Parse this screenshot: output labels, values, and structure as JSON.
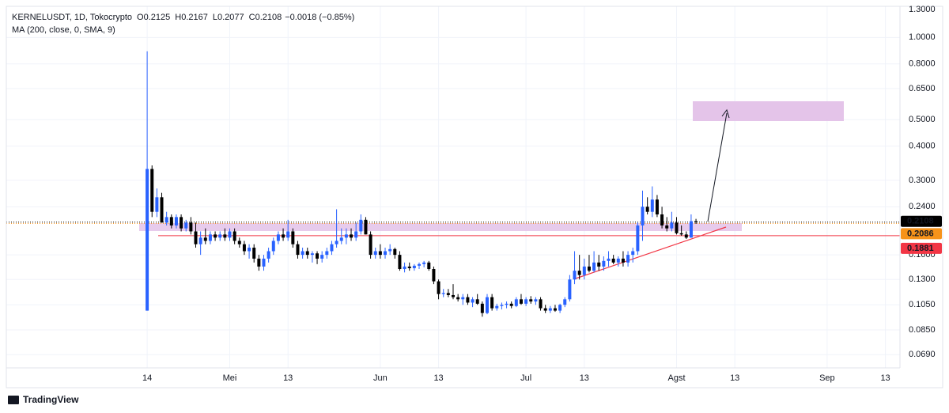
{
  "chart_data": {
    "type": "candlestick",
    "header": {
      "symbol": "KERNELUSDT, 1D, Tokocrypto",
      "ohlc": [
        {
          "label": "O",
          "value": 0.2125
        },
        {
          "label": "H",
          "value": 0.2167
        },
        {
          "label": "L",
          "value": 0.2077
        },
        {
          "label": "C",
          "value": 0.2108
        }
      ],
      "change": "−0.0018 (−0.85%)",
      "indicator": "MA (200, close, 0, SMA, 9)"
    },
    "brand": "TradingView",
    "up_color": "#2962ff",
    "down_color": "#000000",
    "log_scale": true,
    "grid": true,
    "categories": [
      null,
      null,
      null,
      null,
      null,
      null,
      null,
      null,
      null,
      null,
      null,
      null,
      null,
      null,
      null,
      null,
      null,
      null,
      null,
      null,
      null,
      null,
      null,
      null,
      null,
      null,
      null,
      null,
      null,
      null,
      null,
      null,
      null,
      null,
      null,
      null,
      null,
      null,
      null,
      null,
      null,
      null,
      null,
      null,
      null,
      null,
      null,
      null,
      null,
      null,
      null,
      null,
      null,
      null,
      null,
      null,
      null,
      null,
      null,
      null,
      null,
      null,
      null,
      null,
      null,
      null,
      null,
      null,
      null,
      null,
      null,
      null,
      null,
      null,
      null,
      null,
      null,
      null,
      null,
      null,
      null,
      null,
      null,
      null,
      null,
      null,
      null,
      null,
      null,
      null,
      null,
      null,
      null,
      null,
      null,
      null,
      null,
      null,
      null,
      null,
      null,
      null,
      null,
      null,
      null,
      null,
      null,
      null,
      null,
      null,
      null,
      null,
      null,
      null
    ],
    "open": [
      0.1,
      0.33,
      0.23,
      0.26,
      0.21,
      0.22,
      0.205,
      0.22,
      0.2,
      0.21,
      0.195,
      0.175,
      0.185,
      0.18,
      0.19,
      0.185,
      0.19,
      0.185,
      0.195,
      0.18,
      0.175,
      0.165,
      0.17,
      0.155,
      0.145,
      0.155,
      0.165,
      0.18,
      0.19,
      0.185,
      0.195,
      0.175,
      0.16,
      0.165,
      0.16,
      0.162,
      0.155,
      0.16,
      0.165,
      0.175,
      0.18,
      0.185,
      0.19,
      0.185,
      0.195,
      0.215,
      0.19,
      0.16,
      0.165,
      0.16,
      0.165,
      0.168,
      0.16,
      0.142,
      0.145,
      0.143,
      0.146,
      0.148,
      0.15,
      0.142,
      0.128,
      0.115,
      0.116,
      0.114,
      0.112,
      0.11,
      0.112,
      0.107,
      0.11,
      0.106,
      0.098,
      0.112,
      0.102,
      0.104,
      0.105,
      0.106,
      0.104,
      0.11,
      0.106,
      0.11,
      0.108,
      0.11,
      0.102,
      0.1,
      0.102,
      0.1,
      0.105,
      0.11,
      0.13,
      0.14,
      0.135,
      0.145,
      0.14,
      0.15,
      0.145,
      0.152,
      0.155,
      0.15,
      0.155,
      0.15,
      0.16,
      0.165,
      0.205,
      0.24,
      0.23,
      0.255,
      0.225,
      0.205,
      0.2,
      0.21,
      0.192,
      0.19,
      0.185,
      0.2125
    ],
    "high": [
      0.89,
      0.34,
      0.28,
      0.27,
      0.23,
      0.225,
      0.225,
      0.225,
      0.215,
      0.22,
      0.21,
      0.195,
      0.2,
      0.195,
      0.195,
      0.195,
      0.2,
      0.2,
      0.2,
      0.185,
      0.18,
      0.175,
      0.175,
      0.16,
      0.16,
      0.17,
      0.185,
      0.195,
      0.2,
      0.215,
      0.2,
      0.18,
      0.17,
      0.17,
      0.165,
      0.165,
      0.165,
      0.17,
      0.18,
      0.235,
      0.2,
      0.2,
      0.2,
      0.21,
      0.225,
      0.22,
      0.195,
      0.17,
      0.175,
      0.17,
      0.175,
      0.17,
      0.165,
      0.15,
      0.15,
      0.148,
      0.15,
      0.152,
      0.152,
      0.145,
      0.13,
      0.12,
      0.12,
      0.125,
      0.115,
      0.115,
      0.115,
      0.112,
      0.115,
      0.108,
      0.115,
      0.115,
      0.106,
      0.107,
      0.108,
      0.108,
      0.112,
      0.115,
      0.112,
      0.113,
      0.112,
      0.112,
      0.105,
      0.104,
      0.105,
      0.106,
      0.112,
      0.135,
      0.165,
      0.16,
      0.155,
      0.16,
      0.165,
      0.16,
      0.158,
      0.165,
      0.16,
      0.158,
      0.165,
      0.165,
      0.17,
      0.21,
      0.275,
      0.26,
      0.285,
      0.265,
      0.24,
      0.22,
      0.23,
      0.22,
      0.205,
      0.195,
      0.225,
      0.2167
    ],
    "low": [
      0.1,
      0.22,
      0.22,
      0.21,
      0.205,
      0.2,
      0.2,
      0.195,
      0.195,
      0.19,
      0.17,
      0.16,
      0.175,
      0.175,
      0.18,
      0.18,
      0.18,
      0.18,
      0.175,
      0.17,
      0.16,
      0.155,
      0.15,
      0.14,
      0.14,
      0.15,
      0.16,
      0.175,
      0.18,
      0.18,
      0.17,
      0.155,
      0.155,
      0.155,
      0.15,
      0.148,
      0.15,
      0.155,
      0.16,
      0.17,
      0.175,
      0.175,
      0.18,
      0.18,
      0.19,
      0.19,
      0.155,
      0.155,
      0.155,
      0.155,
      0.16,
      0.155,
      0.14,
      0.138,
      0.14,
      0.14,
      0.142,
      0.144,
      0.14,
      0.125,
      0.11,
      0.112,
      0.112,
      0.11,
      0.108,
      0.105,
      0.105,
      0.103,
      0.105,
      0.095,
      0.097,
      0.1,
      0.1,
      0.101,
      0.102,
      0.102,
      0.103,
      0.105,
      0.104,
      0.106,
      0.105,
      0.1,
      0.098,
      0.098,
      0.099,
      0.098,
      0.103,
      0.108,
      0.125,
      0.13,
      0.13,
      0.138,
      0.138,
      0.14,
      0.14,
      0.145,
      0.148,
      0.145,
      0.145,
      0.145,
      0.15,
      0.16,
      0.18,
      0.225,
      0.22,
      0.22,
      0.2,
      0.195,
      0.195,
      0.19,
      0.188,
      0.183,
      0.185,
      0.2077
    ],
    "close": [
      0.33,
      0.23,
      0.26,
      0.21,
      0.22,
      0.205,
      0.22,
      0.2,
      0.21,
      0.195,
      0.175,
      0.185,
      0.18,
      0.19,
      0.185,
      0.19,
      0.185,
      0.195,
      0.18,
      0.175,
      0.165,
      0.17,
      0.155,
      0.145,
      0.155,
      0.165,
      0.18,
      0.19,
      0.185,
      0.195,
      0.175,
      0.16,
      0.165,
      0.16,
      0.162,
      0.155,
      0.16,
      0.165,
      0.175,
      0.18,
      0.185,
      0.19,
      0.185,
      0.195,
      0.215,
      0.19,
      0.16,
      0.165,
      0.16,
      0.165,
      0.168,
      0.16,
      0.142,
      0.145,
      0.143,
      0.146,
      0.148,
      0.15,
      0.142,
      0.128,
      0.115,
      0.116,
      0.114,
      0.112,
      0.11,
      0.112,
      0.107,
      0.11,
      0.106,
      0.098,
      0.112,
      0.102,
      0.104,
      0.105,
      0.106,
      0.104,
      0.11,
      0.106,
      0.11,
      0.108,
      0.11,
      0.102,
      0.1,
      0.102,
      0.1,
      0.105,
      0.11,
      0.13,
      0.14,
      0.135,
      0.145,
      0.14,
      0.15,
      0.145,
      0.152,
      0.155,
      0.15,
      0.155,
      0.15,
      0.16,
      0.165,
      0.205,
      0.24,
      0.23,
      0.255,
      0.225,
      0.205,
      0.2,
      0.21,
      0.192,
      0.19,
      0.185,
      0.2125,
      0.2108
    ],
    "xlim": [
      -29,
      155
    ],
    "xticks": [
      {
        "value": 0,
        "label": "14"
      },
      {
        "value": 17,
        "label": "Mei"
      },
      {
        "value": 29,
        "label": "13"
      },
      {
        "value": 48,
        "label": "Jun"
      },
      {
        "value": 60,
        "label": "13"
      },
      {
        "value": 78,
        "label": "Jul"
      },
      {
        "value": 90,
        "label": "13"
      },
      {
        "value": 109,
        "label": "Agst"
      },
      {
        "value": 121,
        "label": "13"
      },
      {
        "value": 140,
        "label": "Sep"
      },
      {
        "value": 152,
        "label": "13"
      }
    ],
    "ylim": [
      0.0617,
      1.3
    ],
    "yticks": [
      {
        "value": 1.3,
        "label": "1.3000"
      },
      {
        "value": 1.0,
        "label": "1.0000"
      },
      {
        "value": 0.8,
        "label": "0.8000"
      },
      {
        "value": 0.65,
        "label": "0.6500"
      },
      {
        "value": 0.5,
        "label": "0.5000"
      },
      {
        "value": 0.4,
        "label": "0.4000"
      },
      {
        "value": 0.3,
        "label": "0.3000"
      },
      {
        "value": 0.24,
        "label": "0.2400"
      },
      {
        "value": 0.16,
        "label": "0.1600"
      },
      {
        "value": 0.13,
        "label": "0.1300"
      },
      {
        "value": 0.105,
        "label": "0.1050"
      },
      {
        "value": 0.085,
        "label": "0.0850"
      },
      {
        "value": 0.069,
        "label": "0.0690"
      }
    ],
    "price_lines": [
      {
        "value": 0.2108,
        "color": "#000000",
        "text_color": "#ffffff",
        "dash": "1 2"
      },
      {
        "value": 0.2086,
        "color": "#f7931a",
        "text_color": "#000000",
        "dash": "1 2"
      },
      {
        "value": 0.1881,
        "color": "#f23645",
        "text_color": "#ffffff",
        "dash": "none"
      }
    ]
  }
}
